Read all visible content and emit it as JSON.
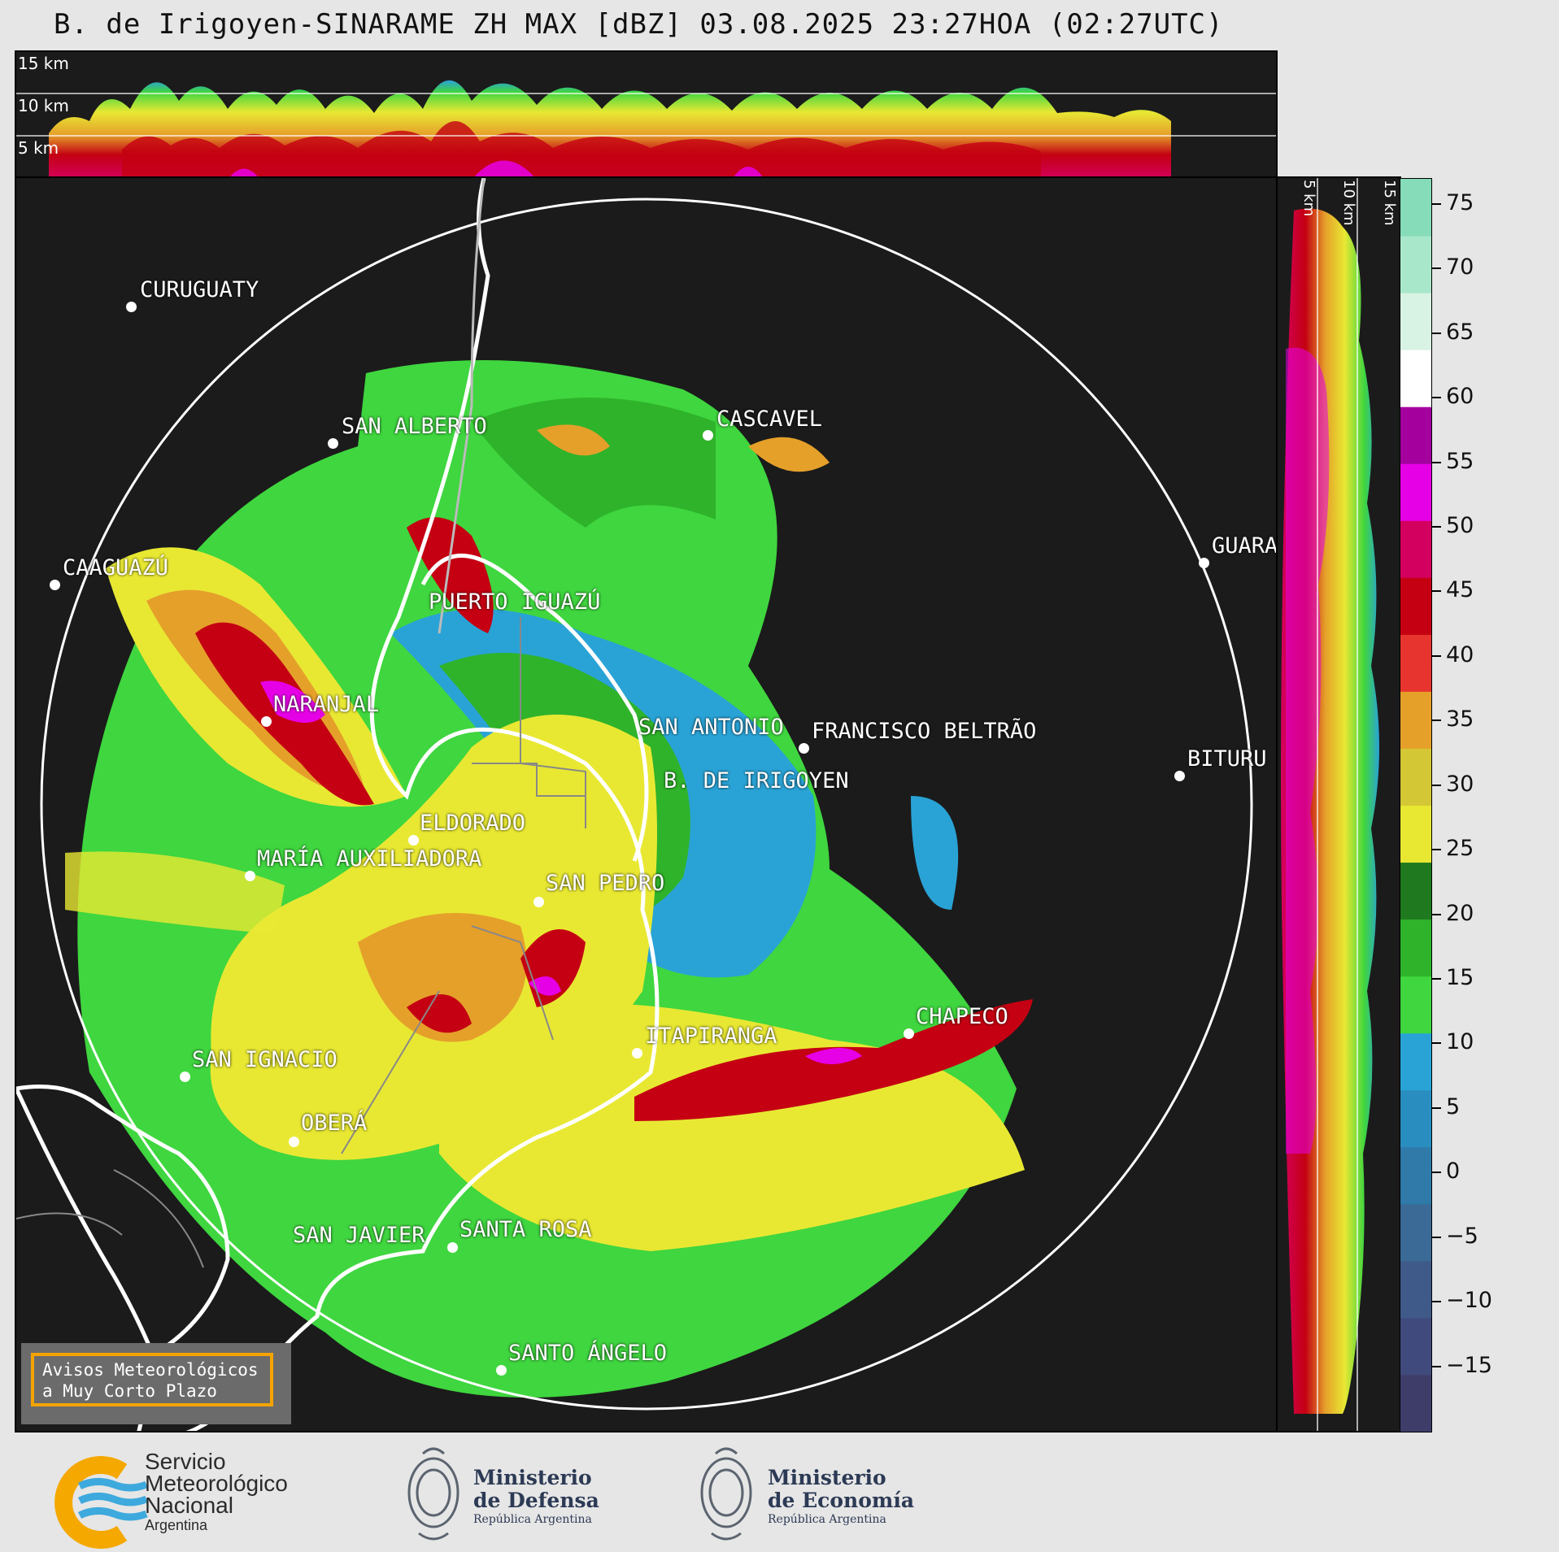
{
  "title": "B. de Irigoyen-SINARAME ZH MAX [dBZ] 03.08.2025 23:27HOA (02:27UTC)",
  "height_labels": {
    "top": [
      "15 km",
      "10 km",
      "5 km"
    ],
    "side": [
      "5 km",
      "10 km",
      "15 km"
    ]
  },
  "colorbar": {
    "unit": "dBZ",
    "range": [
      -20,
      77
    ],
    "ticks": [
      "75",
      "70",
      "65",
      "60",
      "55",
      "50",
      "45",
      "40",
      "35",
      "30",
      "25",
      "20",
      "15",
      "10",
      "5",
      "0",
      "−5",
      "−10",
      "−15"
    ],
    "colors": [
      "#3e3d6a",
      "#414a7c",
      "#3f5a89",
      "#3a6a95",
      "#2f7aa8",
      "#2a8dbf",
      "#29a3d6",
      "#3fd63f",
      "#2fb32a",
      "#1f7a1f",
      "#e8e833",
      "#d4c736",
      "#e5a02a",
      "#e8342e",
      "#c40012",
      "#d4005f",
      "#e600e6",
      "#a3009e",
      "#ffffff",
      "#d8f2e3",
      "#a8e7c9",
      "#86dbb8"
    ]
  },
  "cities": [
    {
      "name": "CURUGUATY"
    },
    {
      "name": "SAN ALBERTO"
    },
    {
      "name": "CASCAVEL"
    },
    {
      "name": "CAAGUAZÚ"
    },
    {
      "name": "GUARA"
    },
    {
      "name": "PUERTO IGUAZÚ"
    },
    {
      "name": "NARANJAL"
    },
    {
      "name": "SAN ANTONIO"
    },
    {
      "name": "FRANCISCO BELTRÃO"
    },
    {
      "name": "BITURU"
    },
    {
      "name": "B. DE IRIGOYEN"
    },
    {
      "name": "ELDORADO"
    },
    {
      "name": "MARÍA AUXILIADORA"
    },
    {
      "name": "SAN PEDRO"
    },
    {
      "name": "CHAPECO"
    },
    {
      "name": "ITAPIRANGA"
    },
    {
      "name": "SAN IGNACIO"
    },
    {
      "name": "OBERÁ"
    },
    {
      "name": "SAN JAVIER"
    },
    {
      "name": "SANTA ROSA"
    },
    {
      "name": "SANTO ÁNGELO"
    }
  ],
  "warning_box": {
    "line1": "Avisos Meteorológicos",
    "line2": "a Muy Corto Plazo"
  },
  "footer": {
    "smn": {
      "line1": "Servicio",
      "line2": "Meteorológico",
      "line3": "Nacional",
      "line4": "Argentina"
    },
    "defensa": {
      "line1": "Ministerio",
      "line2": "de Defensa",
      "line3": "República Argentina"
    },
    "economia": {
      "line1": "Ministerio",
      "line2": "de Economía",
      "line3": "República Argentina"
    }
  }
}
